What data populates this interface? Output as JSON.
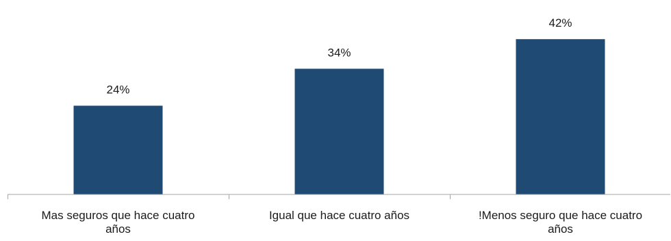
{
  "chart_data": {
    "type": "bar",
    "categories": [
      "Mas seguros que hace cuatro años",
      "Igual que hace cuatro años",
      "!Menos seguro que hace cuatro años"
    ],
    "values": [
      24,
      34,
      42
    ],
    "value_labels": [
      "24%",
      "34%",
      "42%"
    ],
    "title": "",
    "xlabel": "",
    "ylabel": "",
    "ylim": [
      0,
      45
    ],
    "grid": false,
    "legend": "none",
    "colors": {
      "bar": "#1f4a73",
      "axis": "#a6a6a6",
      "text": "#1a1a1a"
    }
  }
}
